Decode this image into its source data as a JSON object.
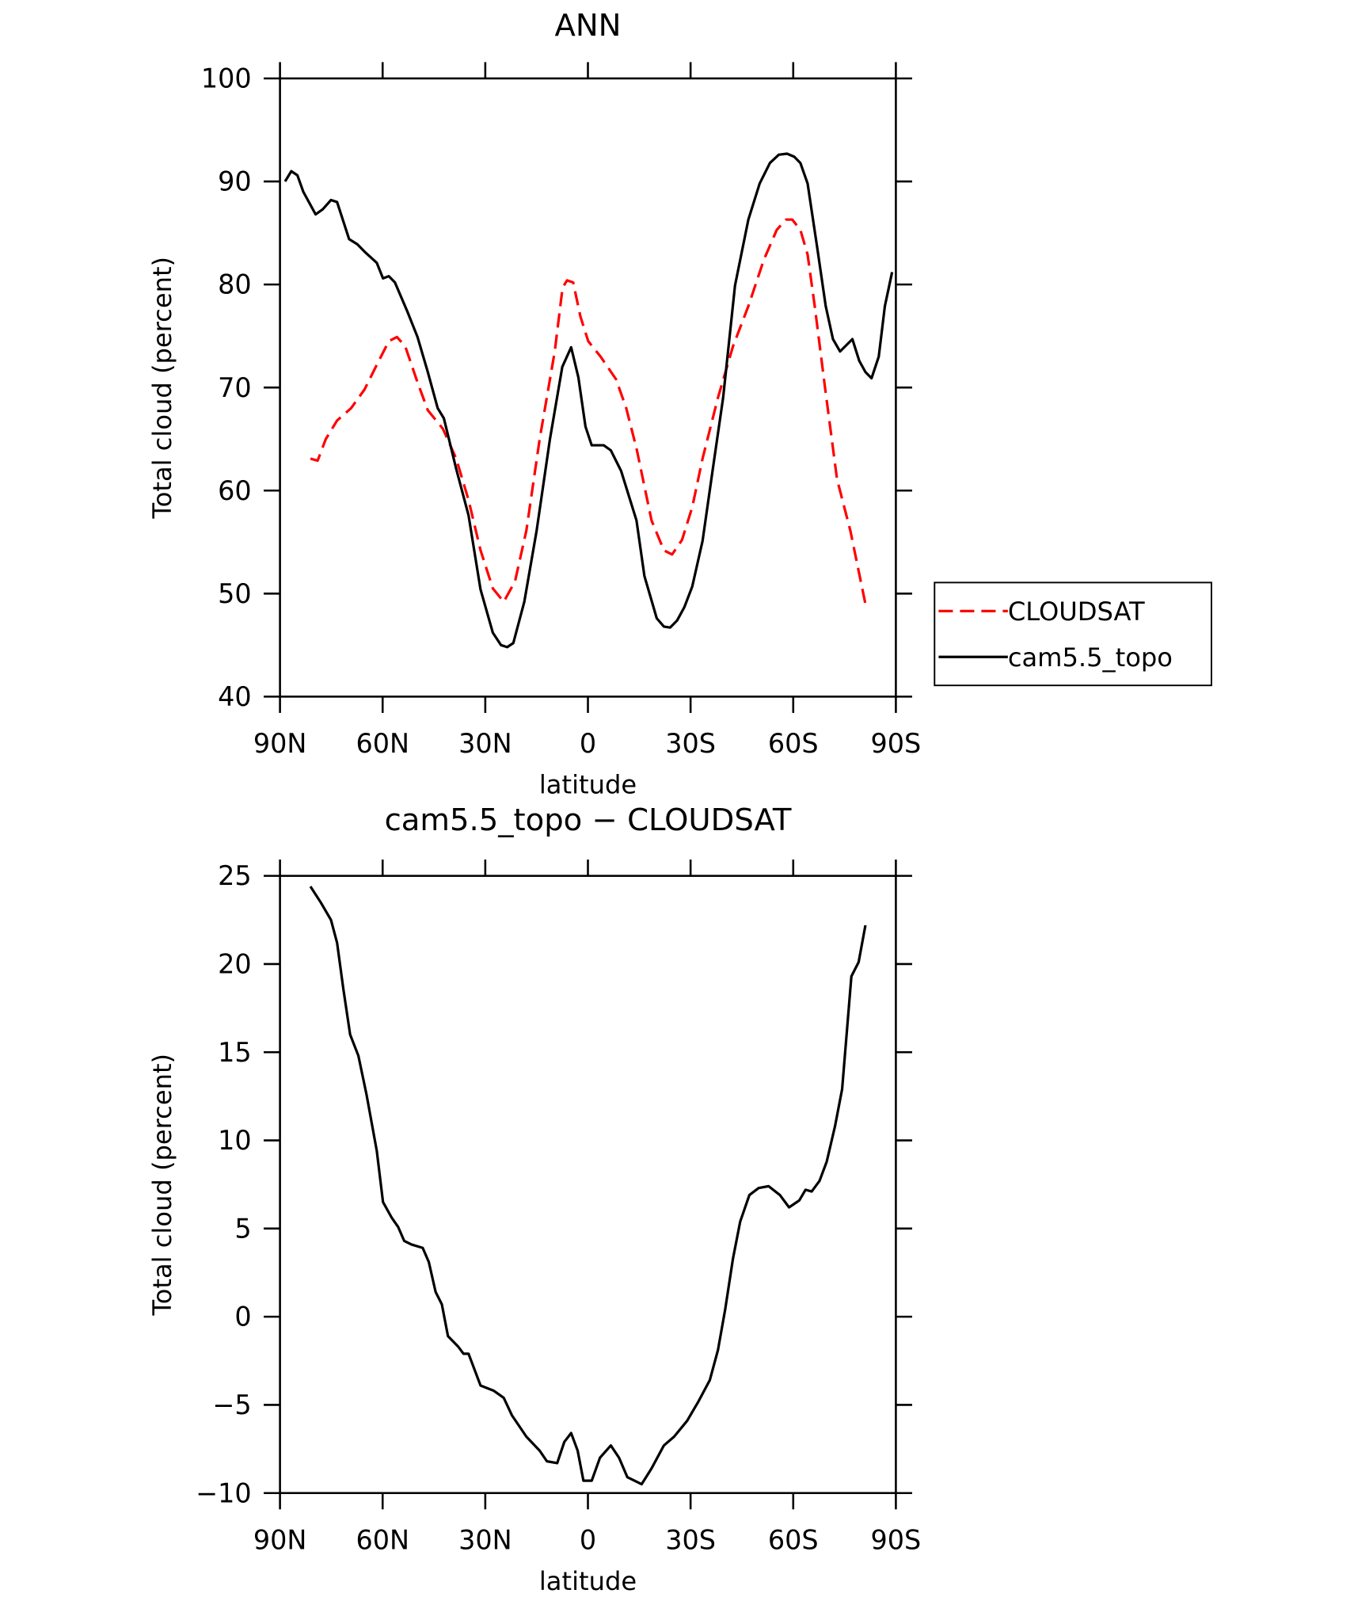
{
  "chart_data": [
    {
      "type": "line",
      "title": "ANN",
      "x_label": "latitude",
      "y_label": "Total cloud (percent)",
      "xlim": [
        90,
        -90
      ],
      "xticks": [
        {
          "value": 90,
          "label": "90N"
        },
        {
          "value": 60,
          "label": "60N"
        },
        {
          "value": 30,
          "label": "30N"
        },
        0,
        {
          "value": -30,
          "label": "30S"
        },
        {
          "value": -60,
          "label": "60S"
        },
        {
          "value": -90,
          "label": "90S"
        }
      ],
      "ylim": [
        40,
        100
      ],
      "yticks": [
        40,
        50,
        60,
        70,
        80,
        90,
        100
      ],
      "legend": "outside-right",
      "series": [
        {
          "name": "CLOUDSAT",
          "color": "#ff0000",
          "dashed": true,
          "x": [
            81.1,
            79.0,
            76.6,
            73.3,
            69.2,
            65.3,
            61.7,
            58.2,
            55.8,
            53.4,
            49.8,
            46.8,
            42.4,
            38.5,
            34.9,
            31.4,
            27.8,
            24.6,
            21.3,
            18.0,
            14.1,
            9.7,
            7.4,
            6.1,
            4.3,
            2.2,
            -0.1,
            -3.7,
            -8.2,
            -11.2,
            -14.2,
            -18.6,
            -22.2,
            -24.6,
            -27.5,
            -30.5,
            -33.5,
            -38.0,
            -42.4,
            -46.9,
            -51.4,
            -55.2,
            -57.9,
            -59.7,
            -62.1,
            -64.2,
            -66.3,
            -69.3,
            -72.8,
            -76.7,
            -81.1
          ],
          "values": [
            63.1,
            62.9,
            65.0,
            66.8,
            68.0,
            69.8,
            72.2,
            74.5,
            74.9,
            74.0,
            70.5,
            67.8,
            66.0,
            63.1,
            59.1,
            54.2,
            50.5,
            49.2,
            51.2,
            56.1,
            65.0,
            73.5,
            79.7,
            80.4,
            80.2,
            76.9,
            74.5,
            73.0,
            70.8,
            68.0,
            64.1,
            57.1,
            54.2,
            53.8,
            55.2,
            58.4,
            63.1,
            69.0,
            74.0,
            77.9,
            82.4,
            85.3,
            86.3,
            86.3,
            85.3,
            82.9,
            77.9,
            70.0,
            61.1,
            56.1,
            49.0
          ]
        },
        {
          "name": "cam5.5_topo",
          "color": "#000000",
          "dashed": false,
          "x": [
            88.5,
            86.7,
            84.9,
            83.2,
            79.6,
            77.5,
            75.1,
            73.3,
            69.8,
            67.4,
            65.0,
            61.7,
            59.9,
            58.2,
            56.4,
            52.8,
            49.8,
            46.8,
            43.9,
            42.1,
            38.5,
            34.9,
            31.4,
            27.8,
            25.4,
            23.6,
            21.8,
            18.6,
            15.0,
            11.1,
            7.5,
            4.9,
            2.8,
            0.7,
            -1.1,
            -4.6,
            -6.7,
            -9.7,
            -14.2,
            -16.5,
            -20.1,
            -22.2,
            -24.0,
            -26.1,
            -28.2,
            -30.5,
            -33.5,
            -36.5,
            -39.5,
            -43.0,
            -46.9,
            -50.2,
            -53.2,
            -55.8,
            -58.2,
            -60.3,
            -62.1,
            -64.2,
            -67.1,
            -69.5,
            -71.6,
            -73.7,
            -77.3,
            -79.3,
            -81.1,
            -82.9,
            -85.0,
            -86.8,
            -88.9
          ],
          "values": [
            90.0,
            91.0,
            90.6,
            89.0,
            86.8,
            87.3,
            88.2,
            88.0,
            84.4,
            83.9,
            83.1,
            82.1,
            80.6,
            80.8,
            80.2,
            77.4,
            74.9,
            71.5,
            68.0,
            67.0,
            62.1,
            57.6,
            50.4,
            46.2,
            45.0,
            44.8,
            45.2,
            49.2,
            56.1,
            65.0,
            72.0,
            73.9,
            71.0,
            66.2,
            64.4,
            64.4,
            63.9,
            61.9,
            57.1,
            51.7,
            47.6,
            46.8,
            46.7,
            47.4,
            48.7,
            50.7,
            55.1,
            62.1,
            69.0,
            79.9,
            86.3,
            89.8,
            91.8,
            92.6,
            92.7,
            92.4,
            91.8,
            89.8,
            83.4,
            77.9,
            74.7,
            73.5,
            74.7,
            72.6,
            71.5,
            70.9,
            73.0,
            77.9,
            81.2
          ]
        }
      ]
    },
    {
      "type": "line",
      "title": "cam5.5_topo − CLOUDSAT",
      "x_label": "latitude",
      "y_label": "Total cloud (percent)",
      "xlim": [
        90,
        -90
      ],
      "xticks": [
        {
          "value": 90,
          "label": "90N"
        },
        {
          "value": 60,
          "label": "60N"
        },
        {
          "value": 30,
          "label": "30N"
        },
        0,
        {
          "value": -30,
          "label": "30S"
        },
        {
          "value": -60,
          "label": "60S"
        },
        {
          "value": -90,
          "label": "90S"
        }
      ],
      "ylim": [
        -10,
        25
      ],
      "yticks": [
        {
          "value": -10,
          "label": "−10"
        },
        {
          "value": -5,
          "label": "−5"
        },
        0,
        5,
        10,
        15,
        20,
        25
      ],
      "series": [
        {
          "color": "#000000",
          "dashed": false,
          "x": [
            81.1,
            78.1,
            75.1,
            73.3,
            71.5,
            69.5,
            67.1,
            64.7,
            61.7,
            59.9,
            57.3,
            55.5,
            53.7,
            51.6,
            48.3,
            46.5,
            44.5,
            42.7,
            40.9,
            37.9,
            36.4,
            34.9,
            31.4,
            27.5,
            24.6,
            22.2,
            18.0,
            14.1,
            12.0,
            9.0,
            6.9,
            4.9,
            3.0,
            1.3,
            -1.1,
            -3.5,
            -6.7,
            -9.1,
            -11.5,
            -15.7,
            -18.6,
            -22.2,
            -25.2,
            -29.0,
            -32.3,
            -35.6,
            -38.0,
            -40.1,
            -42.4,
            -44.5,
            -47.2,
            -49.9,
            -52.8,
            -56.1,
            -58.8,
            -61.8,
            -63.6,
            -65.4,
            -67.7,
            -69.8,
            -72.2,
            -74.3,
            -77.0,
            -79.1,
            -81.1
          ],
          "values": [
            24.4,
            23.5,
            22.5,
            21.2,
            18.6,
            16.0,
            14.8,
            12.6,
            9.4,
            6.5,
            5.6,
            5.1,
            4.3,
            4.1,
            3.9,
            3.1,
            1.4,
            0.7,
            -1.1,
            -1.7,
            -2.1,
            -2.1,
            -3.9,
            -4.2,
            -4.6,
            -5.6,
            -6.8,
            -7.6,
            -8.2,
            -8.3,
            -7.1,
            -6.6,
            -7.6,
            -9.3,
            -9.3,
            -8.0,
            -7.3,
            -8.0,
            -9.1,
            -9.5,
            -8.6,
            -7.3,
            -6.8,
            -5.9,
            -4.8,
            -3.6,
            -1.9,
            0.4,
            3.3,
            5.4,
            6.9,
            7.3,
            7.4,
            6.9,
            6.2,
            6.6,
            7.2,
            7.1,
            7.7,
            8.8,
            10.8,
            12.9,
            19.3,
            20.1,
            22.2
          ]
        }
      ]
    }
  ]
}
